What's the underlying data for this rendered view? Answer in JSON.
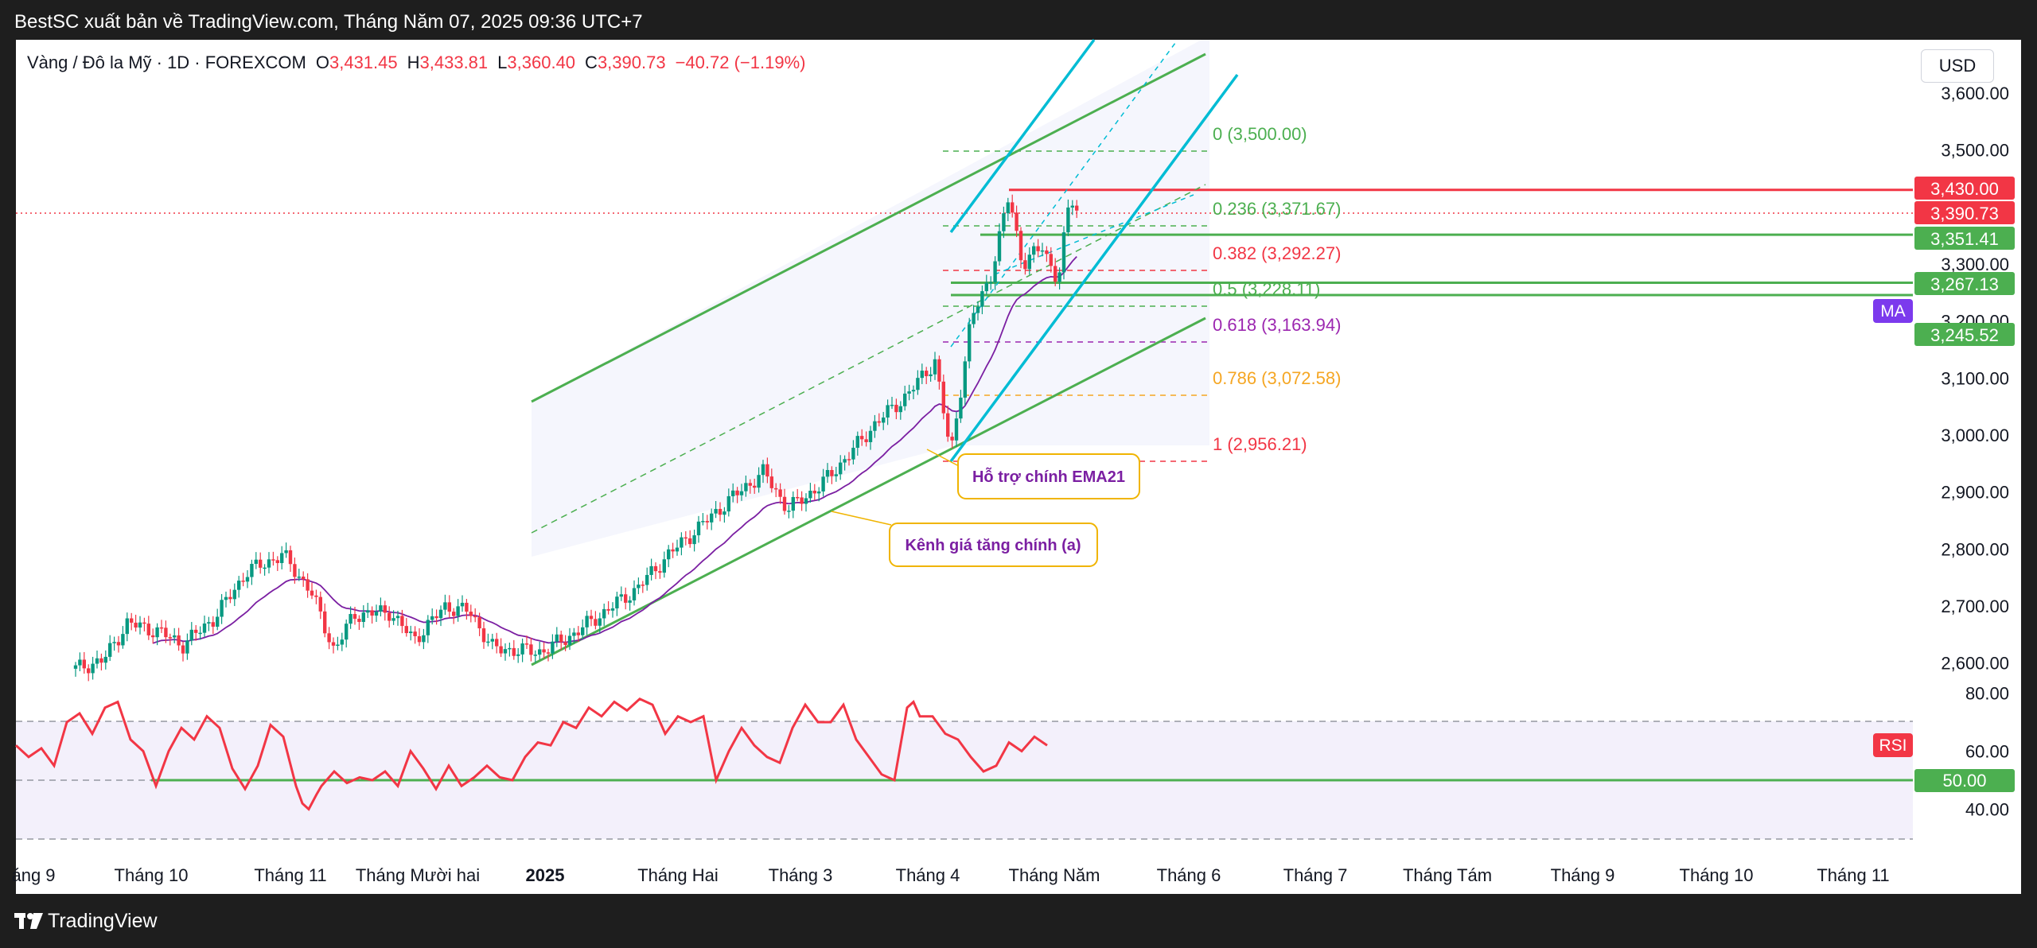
{
  "header": {
    "publisher_line": "BestSC xuất bản về TradingView.com, Tháng Năm 07, 2025 09:36 UTC+7"
  },
  "legend": {
    "symbol": "Vàng / Đô la Mỹ · 1D · FOREXCOM",
    "o_key": "O",
    "o_val": "3,431.45",
    "h_key": "H",
    "h_val": "3,433.81",
    "l_key": "L",
    "l_val": "3,360.40",
    "c_key": "C",
    "c_val": "3,390.73",
    "change": "−40.72 (−1.19%)"
  },
  "currency_button": "USD",
  "footer": {
    "brand": "TradingView"
  },
  "colors": {
    "up": "#089981",
    "down": "#f23645",
    "ema": "#7b1fa2",
    "channel": "#4caf50",
    "pitchfork": "#00bcd4",
    "rsi": "#f23645",
    "label_border": "#f0b400"
  },
  "chart_data": {
    "type": "candlestick",
    "price_axis": {
      "ticks": [
        "3,600.00",
        "3,500.00",
        "3,300.00",
        "3,200.00",
        "3,100.00",
        "3,000.00",
        "2,900.00",
        "2,800.00",
        "2,700.00",
        "2,600.00"
      ],
      "tick_values": [
        3600,
        3500,
        3300,
        3200,
        3100,
        3000,
        2900,
        2800,
        2700,
        2600
      ],
      "ylim": [
        2570,
        3640
      ]
    },
    "price_badges": [
      {
        "label": "3,430.00",
        "value": 3430,
        "color": "#f23645"
      },
      {
        "label": "3,390.73",
        "value": 3390.73,
        "color": "#f23645"
      },
      {
        "label": "3,351.41",
        "value": 3351.41,
        "color": "#4caf50"
      },
      {
        "label": "3,267.13",
        "value": 3267.13,
        "color": "#4caf50"
      },
      {
        "label": "3,245.52",
        "value": 3245.52,
        "color": "#4caf50"
      }
    ],
    "ma_tag": "MA",
    "time_axis": [
      "áng 9",
      "Tháng 10",
      "Tháng 11",
      "Tháng Mười hai",
      "2025",
      "Tháng Hai",
      "Tháng 3",
      "Tháng 4",
      "Tháng Năm",
      "Tháng 6",
      "Tháng 7",
      "Tháng Tám",
      "Tháng 9",
      "Tháng 10",
      "Tháng 11"
    ],
    "fib_levels": [
      {
        "label": "0 (3,500.00)",
        "value": 3500,
        "color": "#4caf50"
      },
      {
        "label": "0.236 (3,371.67)",
        "value": 3371.67,
        "color": "#4caf50"
      },
      {
        "label": "0.382 (3,292.27)",
        "value": 3292.27,
        "color": "#f23645"
      },
      {
        "label": "0.5 (3,228.11)",
        "value": 3228.11,
        "color": "#4caf50"
      },
      {
        "label": "0.618 (3,163.94)",
        "value": 3163.94,
        "color": "#9c27b0"
      },
      {
        "label": "0.786 (3,072.58)",
        "value": 3072.58,
        "color": "#f5a623"
      },
      {
        "label": "1 (2,956.21)",
        "value": 2956.21,
        "color": "#f23645"
      }
    ],
    "horizontal_lines": [
      {
        "value": 3430,
        "color": "#f23645"
      },
      {
        "value": 3351.41,
        "color": "#4caf50"
      },
      {
        "value": 3267.13,
        "color": "#4caf50"
      },
      {
        "value": 3245.52,
        "color": "#4caf50"
      }
    ],
    "annotations": [
      "Hỗ trợ chính EMA21",
      "Kênh giá tăng chính (a)"
    ],
    "rsi": {
      "label": "RSI",
      "ticks": [
        "80.00",
        "60.00",
        "40.00"
      ],
      "tick_values": [
        80,
        60,
        40
      ],
      "ylim": [
        32,
        88
      ],
      "upper_band": 70,
      "lower_band": 30,
      "mid": 50,
      "badge": "50.00",
      "x": [
        0,
        10,
        20,
        30,
        40,
        50,
        60,
        70,
        80,
        90,
        100,
        110,
        120,
        130,
        140,
        150,
        160,
        170,
        180,
        190,
        200,
        210,
        220,
        225,
        230,
        236,
        240,
        250,
        260,
        270,
        280,
        290,
        300,
        310,
        320,
        330,
        340,
        350,
        360,
        370,
        380,
        390,
        400,
        410,
        420,
        430,
        440,
        450,
        460,
        470,
        480,
        490,
        500,
        510,
        520,
        530,
        540,
        550,
        560,
        570,
        580,
        590,
        600,
        610,
        620,
        630,
        640,
        650,
        660,
        670,
        680,
        690,
        700,
        705,
        710,
        720,
        730,
        740,
        750,
        760,
        770,
        780,
        790,
        800,
        810
      ],
      "values": [
        62,
        58,
        61,
        55,
        70,
        73,
        66,
        75,
        77,
        64,
        60,
        48,
        60,
        68,
        64,
        72,
        68,
        54,
        47,
        55,
        69,
        65,
        48,
        42,
        40,
        45,
        48,
        53,
        49,
        51,
        50,
        53,
        48,
        60,
        54,
        47,
        55,
        48,
        51,
        55,
        51,
        50,
        58,
        63,
        62,
        70,
        68,
        75,
        72,
        77,
        74,
        78,
        76,
        66,
        72,
        70,
        72,
        50,
        60,
        68,
        62,
        58,
        56,
        68,
        76,
        70,
        70,
        76,
        64,
        58,
        52,
        50,
        75,
        77,
        72,
        72,
        66,
        64,
        58,
        53,
        55,
        63,
        60,
        65,
        62
      ]
    }
  }
}
